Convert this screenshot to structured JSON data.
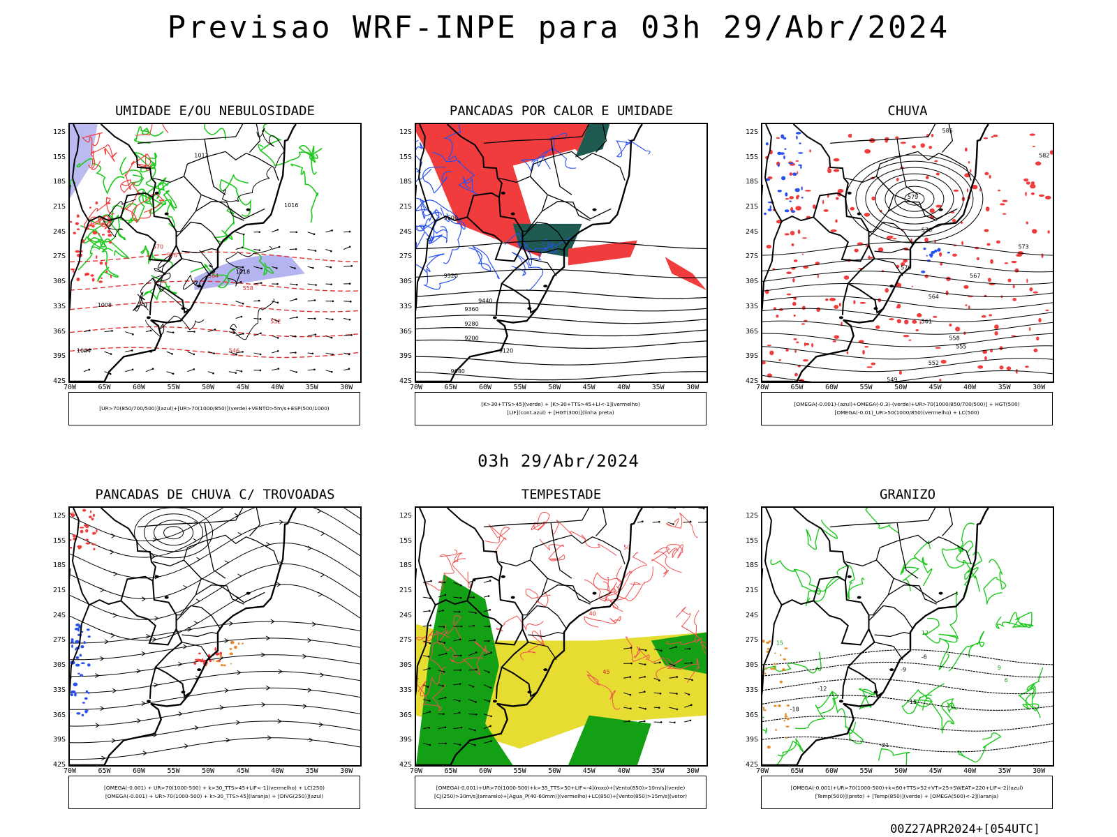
{
  "header": {
    "title": "Previsao WRF-INPE  para 03h 29/Abr/2024"
  },
  "mid_date": "03h 29/Abr/2024",
  "footer": "00Z27APR2024+[054UTC]",
  "axes": {
    "lat_labels": [
      "12S",
      "15S",
      "18S",
      "21S",
      "24S",
      "27S",
      "30S",
      "33S",
      "36S",
      "39S",
      "42S"
    ],
    "lon_labels": [
      "70W",
      "65W",
      "60W",
      "55W",
      "50W",
      "45W",
      "40W",
      "35W",
      "30W"
    ]
  },
  "colors": {
    "green": "#1ec81e",
    "red": "#f03c3c",
    "blue": "#2850f0",
    "lavender": "#b4b4f0",
    "dark_teal": "#1e5a50",
    "yellow": "#e6dc32",
    "dark_green": "#14a014",
    "orange": "#e68c28"
  },
  "panels": [
    {
      "title": "UMIDADE E/OU NEBULOSIDADE",
      "legend": [
        "[UR>70(850/700/500)](azul)+[UR>70(1000/850)](verde)+VENTO>5m/s+ESP(500/1000)"
      ],
      "contour_labels": [
        {
          "text": "1012",
          "color": "black"
        },
        {
          "text": "1016",
          "color": "black"
        },
        {
          "text": "1018",
          "color": "black"
        },
        {
          "text": "1008",
          "color": "black"
        },
        {
          "text": "1004",
          "color": "black"
        },
        {
          "text": "576",
          "color": "red"
        },
        {
          "text": "570",
          "color": "red"
        },
        {
          "text": "564",
          "color": "red"
        },
        {
          "text": "558",
          "color": "red"
        },
        {
          "text": "552",
          "color": "red"
        },
        {
          "text": "546",
          "color": "red"
        }
      ]
    },
    {
      "title": "PANCADAS POR CALOR E UMIDADE",
      "legend": [
        "[K>30+TTS>45](verde) + [K>30+TTS>45+LI<-1](vermelho)",
        "[LIF](cont.azul) + [HGT(300)](linha preta)"
      ],
      "contour_labels": [
        {
          "text": "9600",
          "color": "black"
        },
        {
          "text": "9520",
          "color": "black"
        },
        {
          "text": "9440",
          "color": "black"
        },
        {
          "text": "9360",
          "color": "black"
        },
        {
          "text": "9280",
          "color": "black"
        },
        {
          "text": "9200",
          "color": "black"
        },
        {
          "text": "9120",
          "color": "black"
        },
        {
          "text": "9040",
          "color": "black"
        }
      ]
    },
    {
      "title": "CHUVA",
      "legend": [
        "[OMEGA(-0.001)-(azul)+OMEGA(-0.3)-(verde)+UR>70(1000/850/700/500)] + HGT(500)",
        "[OMEGA(-0.01)_UR>50(1000/850)(vermelho) + LC(500)"
      ],
      "contour_labels": [
        {
          "text": "585",
          "color": "black"
        },
        {
          "text": "582",
          "color": "black"
        },
        {
          "text": "579",
          "color": "black"
        },
        {
          "text": "576",
          "color": "black"
        },
        {
          "text": "573",
          "color": "black"
        },
        {
          "text": "570",
          "color": "black"
        },
        {
          "text": "567",
          "color": "black"
        },
        {
          "text": "564",
          "color": "black"
        },
        {
          "text": "561",
          "color": "black"
        },
        {
          "text": "558",
          "color": "black"
        },
        {
          "text": "555",
          "color": "black"
        },
        {
          "text": "552",
          "color": "black"
        },
        {
          "text": "549",
          "color": "black"
        }
      ]
    },
    {
      "title": "PANCADAS DE CHUVA C/ TROVOADAS",
      "legend": [
        "[OMEGA(-0.001) + UR>70(1000-500) + k>30_TTS>45+LIF<-1](vermelho) + LC(250)",
        "[OMEGA(-0.001) + UR>70(1000-500) + k>30_TTS>45](laranja) + [DIVG(250)](azul)"
      ],
      "contour_labels": []
    },
    {
      "title": "TEMPESTADE",
      "legend": [
        "[OMEGA(-0.001)+UR>70(1000-500)+k>35_TTS>50+LIF<-4](roxo)+[Vento(850)>10m/s](verde)",
        "[CJ(250)>30m/s](amarelo)+[Agua_P(40-60mm)](vermelho)+LC(850)+[Vento(850)>15m/s](vetor)"
      ],
      "contour_labels": [
        {
          "text": "50",
          "color": "red"
        },
        {
          "text": "45",
          "color": "red"
        },
        {
          "text": "40",
          "color": "red"
        }
      ]
    },
    {
      "title": "GRANIZO",
      "legend": [
        "[OMEGA(-0.001)+UR>70(1000-500)+k<60+TTS>52+VT>25+SWEAT>220+LIF<-2](azul)",
        "[Temp(500)](preto) + [Temp(850)](verde) + [OMEGA(500)<-2](laranja)"
      ],
      "contour_labels": [
        {
          "text": "-6",
          "color": "black"
        },
        {
          "text": "-9",
          "color": "black"
        },
        {
          "text": "-12",
          "color": "black"
        },
        {
          "text": "-15",
          "color": "black"
        },
        {
          "text": "-18",
          "color": "black"
        },
        {
          "text": "-21",
          "color": "black"
        },
        {
          "text": "15",
          "color": "green"
        },
        {
          "text": "12",
          "color": "green"
        },
        {
          "text": "9",
          "color": "green"
        },
        {
          "text": "6",
          "color": "green"
        }
      ]
    }
  ]
}
